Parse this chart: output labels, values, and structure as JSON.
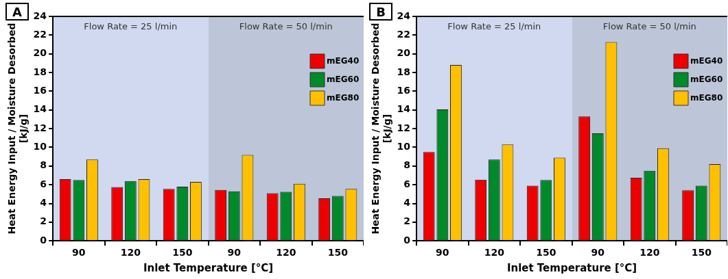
{
  "chart_data": [
    {
      "type": "bar",
      "annotations": [
        "A",
        "Flow Rate = 25 l/min",
        "Flow Rate = 50 l/min"
      ],
      "xlabel": "Inlet Temperature [°C]",
      "ylabel": "Heat Energy Input / Moisture Desorbed [kJ/g]",
      "categories": [
        "90",
        "120",
        "150",
        "90",
        "120",
        "150"
      ],
      "ylim": [
        0,
        24
      ],
      "yticks": [
        0,
        2,
        4,
        6,
        8,
        10,
        12,
        14,
        16,
        18,
        20,
        22,
        24
      ],
      "grid": false,
      "legend": "top right",
      "series": [
        {
          "name": "mEG40",
          "color": "#ee0000",
          "values": [
            6.6,
            5.75,
            5.55,
            5.45,
            5.1,
            4.55
          ]
        },
        {
          "name": "mEG60",
          "color": "#008a2a",
          "values": [
            6.5,
            6.4,
            5.8,
            5.3,
            5.25,
            4.8
          ]
        },
        {
          "name": "mEG80",
          "color": "#ffc000",
          "values": [
            8.7,
            6.6,
            6.3,
            9.2,
            6.1,
            5.55
          ]
        }
      ]
    },
    {
      "type": "bar",
      "annotations": [
        "B",
        "Flow Rate = 25 l/min",
        "Flow Rate = 50 l/min"
      ],
      "xlabel": "Inlet Temperature [°C]",
      "ylabel": "Heat Energy Input / Moisture Desorbed [kJ/g]",
      "categories": [
        "90",
        "120",
        "150",
        "90",
        "120",
        "150"
      ],
      "ylim": [
        0,
        24
      ],
      "yticks": [
        0,
        2,
        4,
        6,
        8,
        10,
        12,
        14,
        16,
        18,
        20,
        22,
        24
      ],
      "grid": false,
      "legend": "top right",
      "series": [
        {
          "name": "mEG40",
          "color": "#ee0000",
          "values": [
            9.5,
            6.55,
            5.9,
            13.3,
            6.75,
            5.4
          ]
        },
        {
          "name": "mEG60",
          "color": "#008a2a",
          "values": [
            14.05,
            8.7,
            6.5,
            11.5,
            7.5,
            5.9
          ]
        },
        {
          "name": "mEG80",
          "color": "#ffc000",
          "values": [
            18.8,
            10.3,
            8.9,
            21.25,
            9.9,
            8.2
          ]
        }
      ]
    }
  ]
}
